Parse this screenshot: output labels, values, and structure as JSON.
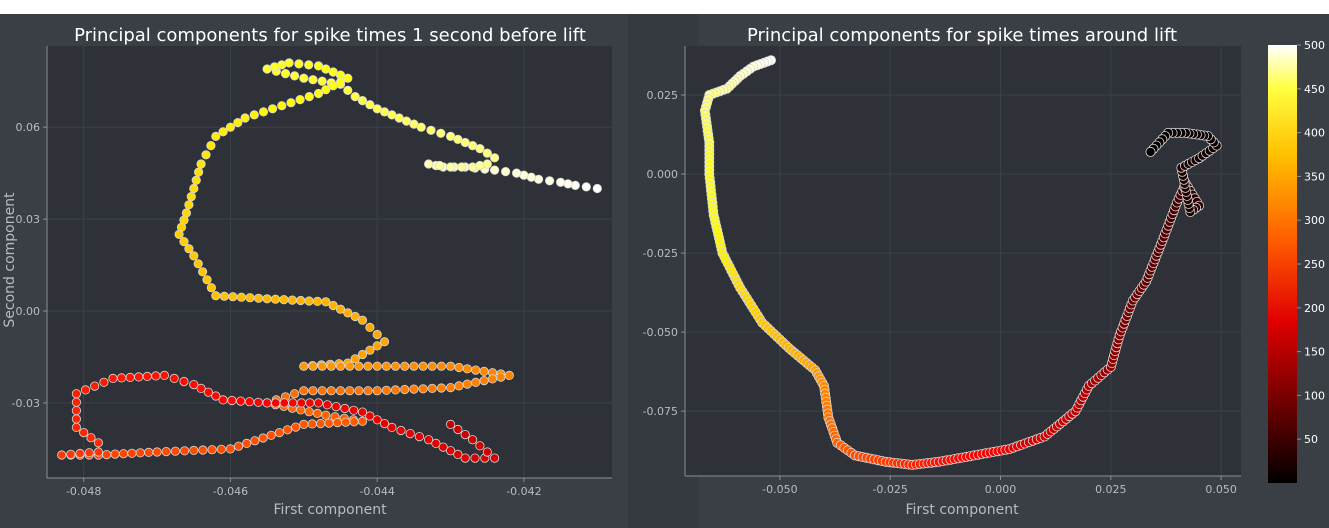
{
  "chart_data": [
    {
      "type": "scatter",
      "title": "Principal components for spike times 1 second before lift",
      "xlabel": "First component",
      "ylabel": "Second component",
      "xlim": [
        -0.0485,
        -0.0408
      ],
      "ylim": [
        -0.0545,
        0.0865
      ],
      "xticks": [
        -0.048,
        -0.046,
        -0.044,
        -0.042
      ],
      "xtick_labels": [
        "-0.048",
        "-0.046",
        "-0.044",
        "-0.042"
      ],
      "yticks": [
        -0.03,
        0.0,
        0.03,
        0.06
      ],
      "ytick_labels": [
        "-0.03",
        "0.00",
        "0.03",
        "0.06"
      ],
      "grid": true,
      "colormap": "hot",
      "color_range": [
        0,
        500
      ],
      "path_points": [
        [
          -0.041,
          0.04,
          500
        ],
        [
          -0.0413,
          0.041,
          495
        ],
        [
          -0.0415,
          0.042,
          490
        ],
        [
          -0.0418,
          0.043,
          485
        ],
        [
          -0.0421,
          0.045,
          480
        ],
        [
          -0.0424,
          0.046,
          475
        ],
        [
          -0.0428,
          0.047,
          470
        ],
        [
          -0.0431,
          0.047,
          465
        ],
        [
          -0.0433,
          0.048,
          460
        ],
        [
          -0.043,
          0.047,
          455
        ],
        [
          -0.0427,
          0.047,
          450
        ],
        [
          -0.0425,
          0.048,
          445
        ],
        [
          -0.0424,
          0.05,
          440
        ],
        [
          -0.0426,
          0.053,
          435
        ],
        [
          -0.043,
          0.057,
          430
        ],
        [
          -0.0434,
          0.06,
          425
        ],
        [
          -0.0437,
          0.063,
          420
        ],
        [
          -0.044,
          0.066,
          415
        ],
        [
          -0.0443,
          0.07,
          410
        ],
        [
          -0.0445,
          0.074,
          405
        ],
        [
          -0.045,
          0.076,
          400
        ],
        [
          -0.0455,
          0.079,
          395
        ],
        [
          -0.0452,
          0.081,
          390
        ],
        [
          -0.0448,
          0.08,
          385
        ],
        [
          -0.0444,
          0.076,
          380
        ],
        [
          -0.0448,
          0.071,
          375
        ],
        [
          -0.0453,
          0.067,
          370
        ],
        [
          -0.0458,
          0.063,
          365
        ],
        [
          -0.0462,
          0.057,
          360
        ],
        [
          -0.0464,
          0.048,
          355
        ],
        [
          -0.0465,
          0.04,
          350
        ],
        [
          -0.0466,
          0.032,
          345
        ],
        [
          -0.0467,
          0.025,
          340
        ],
        [
          -0.0465,
          0.018,
          335
        ],
        [
          -0.0462,
          0.005,
          330
        ],
        [
          -0.0455,
          0.004,
          325
        ],
        [
          -0.0447,
          0.003,
          320
        ],
        [
          -0.0442,
          -0.003,
          315
        ],
        [
          -0.0439,
          -0.01,
          310
        ],
        [
          -0.0444,
          -0.017,
          305
        ],
        [
          -0.045,
          -0.018,
          300
        ],
        [
          -0.044,
          -0.018,
          295
        ],
        [
          -0.043,
          -0.018,
          290
        ],
        [
          -0.0422,
          -0.021,
          285
        ],
        [
          -0.043,
          -0.025,
          280
        ],
        [
          -0.044,
          -0.026,
          275
        ],
        [
          -0.045,
          -0.026,
          270
        ],
        [
          -0.0455,
          -0.03,
          265
        ],
        [
          -0.0447,
          -0.034,
          260
        ],
        [
          -0.0442,
          -0.036,
          255
        ],
        [
          -0.045,
          -0.037,
          250
        ],
        [
          -0.046,
          -0.045,
          245
        ],
        [
          -0.047,
          -0.046,
          240
        ],
        [
          -0.0478,
          -0.047,
          235
        ],
        [
          -0.0483,
          -0.047,
          230
        ],
        [
          -0.0478,
          -0.046,
          225
        ],
        [
          -0.0478,
          -0.043,
          220
        ],
        [
          -0.0481,
          -0.038,
          215
        ],
        [
          -0.0481,
          -0.027,
          210
        ],
        [
          -0.0476,
          -0.022,
          205
        ],
        [
          -0.0469,
          -0.021,
          200
        ],
        [
          -0.0465,
          -0.024,
          195
        ],
        [
          -0.0461,
          -0.029,
          190
        ],
        [
          -0.0455,
          -0.03,
          185
        ],
        [
          -0.0448,
          -0.03,
          180
        ],
        [
          -0.0442,
          -0.033,
          175
        ],
        [
          -0.0438,
          -0.038,
          170
        ],
        [
          -0.0433,
          -0.042,
          165
        ],
        [
          -0.0428,
          -0.048,
          160
        ],
        [
          -0.0424,
          -0.048,
          155
        ],
        [
          -0.0427,
          -0.042,
          150
        ],
        [
          -0.043,
          -0.037,
          145
        ]
      ]
    },
    {
      "type": "scatter",
      "title": "Principal components for spike times around lift",
      "xlabel": "First component",
      "ylabel": "",
      "xlim": [
        -0.0715,
        0.0545
      ],
      "ylim": [
        -0.0955,
        0.0405
      ],
      "xticks": [
        -0.05,
        -0.025,
        0.0,
        0.025,
        0.05
      ],
      "xtick_labels": [
        "-0.050",
        "-0.025",
        "0.000",
        "0.025",
        "0.050"
      ],
      "yticks": [
        -0.075,
        -0.05,
        -0.025,
        0.0,
        0.025
      ],
      "ytick_labels": [
        "-0.075",
        "-0.050",
        "-0.025",
        "0.000",
        "0.025"
      ],
      "grid": true,
      "colormap": "hot",
      "color_range": [
        0,
        500
      ],
      "colorbar_ticks": [
        50,
        100,
        150,
        200,
        250,
        300,
        350,
        400,
        450,
        500
      ],
      "colorbar_tick_labels": [
        "50",
        "100",
        "150",
        "200",
        "250",
        "300",
        "350",
        "400",
        "450",
        "500"
      ],
      "path_points": [
        [
          -0.052,
          0.036,
          500
        ],
        [
          -0.056,
          0.034,
          485
        ],
        [
          -0.059,
          0.031,
          470
        ],
        [
          -0.062,
          0.027,
          455
        ],
        [
          -0.066,
          0.025,
          440
        ],
        [
          -0.067,
          0.02,
          425
        ],
        [
          -0.066,
          0.01,
          410
        ],
        [
          -0.066,
          0.0,
          395
        ],
        [
          -0.065,
          -0.013,
          380
        ],
        [
          -0.063,
          -0.025,
          365
        ],
        [
          -0.059,
          -0.036,
          350
        ],
        [
          -0.054,
          -0.047,
          335
        ],
        [
          -0.048,
          -0.055,
          320
        ],
        [
          -0.042,
          -0.062,
          305
        ],
        [
          -0.04,
          -0.067,
          290
        ],
        [
          -0.039,
          -0.077,
          275
        ],
        [
          -0.037,
          -0.085,
          260
        ],
        [
          -0.033,
          -0.089,
          245
        ],
        [
          -0.026,
          -0.091,
          230
        ],
        [
          -0.02,
          -0.092,
          215
        ],
        [
          -0.014,
          -0.091,
          200
        ],
        [
          -0.006,
          -0.089,
          185
        ],
        [
          0.002,
          -0.087,
          170
        ],
        [
          0.01,
          -0.083,
          155
        ],
        [
          0.017,
          -0.075,
          140
        ],
        [
          0.02,
          -0.067,
          125
        ],
        [
          0.025,
          -0.061,
          110
        ],
        [
          0.027,
          -0.051,
          95
        ],
        [
          0.03,
          -0.04,
          80
        ],
        [
          0.033,
          -0.034,
          70
        ],
        [
          0.037,
          -0.02,
          60
        ],
        [
          0.04,
          -0.009,
          50
        ],
        [
          0.042,
          -0.003,
          40
        ],
        [
          0.045,
          -0.01,
          30
        ],
        [
          0.043,
          -0.012,
          25
        ],
        [
          0.041,
          0.002,
          20
        ],
        [
          0.045,
          0.005,
          15
        ],
        [
          0.049,
          0.009,
          10
        ],
        [
          0.047,
          0.012,
          8
        ],
        [
          0.042,
          0.013,
          6
        ],
        [
          0.038,
          0.013,
          4
        ],
        [
          0.034,
          0.007,
          2
        ]
      ]
    }
  ]
}
